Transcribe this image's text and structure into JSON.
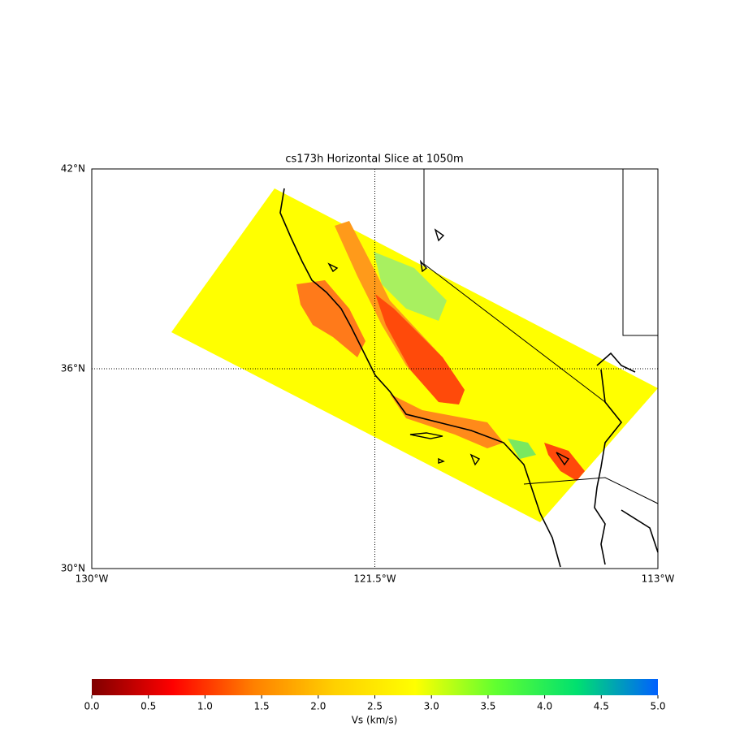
{
  "chart_data": {
    "type": "map",
    "title": "cs173h Horizontal Slice at 1050m",
    "xlim": [
      -130,
      -113
    ],
    "ylim": [
      30,
      42
    ],
    "xticks": [
      {
        "value": -130,
        "label": "130°W"
      },
      {
        "value": -121.5,
        "label": "121.5°W"
      },
      {
        "value": -113,
        "label": "113°W"
      }
    ],
    "yticks": [
      {
        "value": 30,
        "label": "30°N"
      },
      {
        "value": 36,
        "label": "36°N"
      },
      {
        "value": 42,
        "label": "42°N"
      }
    ],
    "grid": true,
    "colorbar": {
      "label": "Vs (km/s)",
      "lim": [
        0,
        5
      ],
      "ticks": [
        {
          "value": 0,
          "label": "0.0"
        },
        0.5,
        {
          "value": 1,
          "label": "1.0"
        },
        1.5,
        {
          "value": 2,
          "label": "2.0"
        },
        2.5,
        {
          "value": 3,
          "label": "3.0"
        },
        3.5,
        {
          "value": 4,
          "label": "4.0"
        },
        4.5,
        {
          "value": 5,
          "label": "5.0"
        }
      ],
      "colors": [
        "#800000",
        "#ff0000",
        "#ff8000",
        "#ffd000",
        "#ffff00",
        "#60ff30",
        "#00e070",
        "#0060ff"
      ]
    }
  }
}
